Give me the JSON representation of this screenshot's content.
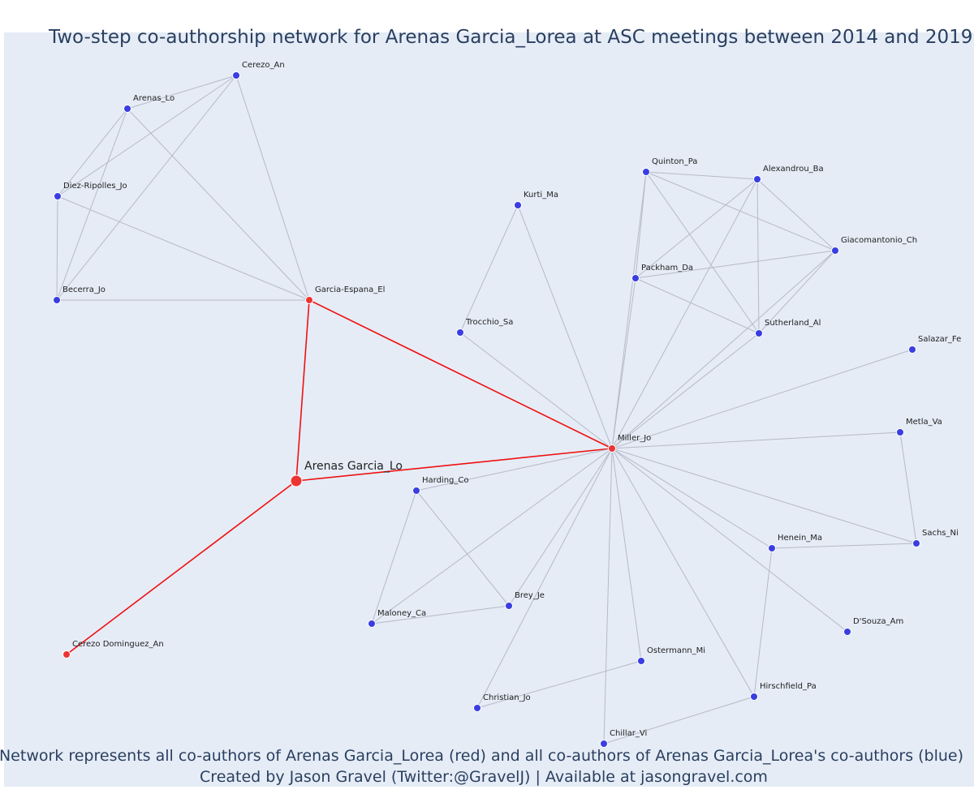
{
  "title": "Two-step co-authorship network for Arenas Garcia_Lorea at ASC meetings between 2014 and 2019",
  "caption_line1": "Network represents all co-authors of Arenas Garcia_Lorea (red) and all co-authors of Arenas Garcia_Lorea's co-authors (blue)",
  "caption_line2": "Created by Jason Gravel (Twitter:@GravelJ) | Available at jasongravel.com",
  "colors": {
    "background": "#e5ecf6",
    "edge": "#b7b9c8",
    "focal_edge": "#ee1111",
    "red_node": "#ee3333",
    "blue_node": "#3a3de0"
  },
  "nodes": [
    {
      "id": "Arenas Garcia_Lo",
      "group": "focal"
    },
    {
      "id": "Garcia-Espana_El",
      "group": "red"
    },
    {
      "id": "Miller_Jo",
      "group": "red"
    },
    {
      "id": "Cerezo Dominguez_An",
      "group": "red"
    },
    {
      "id": "Cerezo_An",
      "group": "blue"
    },
    {
      "id": "Arenas_Lo",
      "group": "blue"
    },
    {
      "id": "Diez-Ripolles_Jo",
      "group": "blue"
    },
    {
      "id": "Becerra_Jo",
      "group": "blue"
    },
    {
      "id": "Kurti_Ma",
      "group": "blue"
    },
    {
      "id": "Trocchio_Sa",
      "group": "blue"
    },
    {
      "id": "Quinton_Pa",
      "group": "blue"
    },
    {
      "id": "Alexandrou_Ba",
      "group": "blue"
    },
    {
      "id": "Giacomantonio_Ch",
      "group": "blue"
    },
    {
      "id": "Packham_Da",
      "group": "blue"
    },
    {
      "id": "Sutherland_Al",
      "group": "blue"
    },
    {
      "id": "Salazar_Fe",
      "group": "blue"
    },
    {
      "id": "Metla_Va",
      "group": "blue"
    },
    {
      "id": "Sachs_Ni",
      "group": "blue"
    },
    {
      "id": "Henein_Ma",
      "group": "blue"
    },
    {
      "id": "D'Souza_Am",
      "group": "blue"
    },
    {
      "id": "Hirschfield_Pa",
      "group": "blue"
    },
    {
      "id": "Ostermann_Mi",
      "group": "blue"
    },
    {
      "id": "Chillar_Vi",
      "group": "blue"
    },
    {
      "id": "Christian_Jo",
      "group": "blue"
    },
    {
      "id": "Harding_Co",
      "group": "blue"
    },
    {
      "id": "Brey_Je",
      "group": "blue"
    },
    {
      "id": "Maloney_Ca",
      "group": "blue"
    }
  ],
  "edges": [
    [
      "Arenas Garcia_Lo",
      "Garcia-Espana_El",
      "focal"
    ],
    [
      "Arenas Garcia_Lo",
      "Miller_Jo",
      "focal"
    ],
    [
      "Arenas Garcia_Lo",
      "Cerezo Dominguez_An",
      "focal"
    ],
    [
      "Garcia-Espana_El",
      "Miller_Jo",
      "focal"
    ],
    [
      "Cerezo_An",
      "Arenas_Lo",
      "other"
    ],
    [
      "Cerezo_An",
      "Diez-Ripolles_Jo",
      "other"
    ],
    [
      "Cerezo_An",
      "Becerra_Jo",
      "other"
    ],
    [
      "Cerezo_An",
      "Garcia-Espana_El",
      "other"
    ],
    [
      "Arenas_Lo",
      "Diez-Ripolles_Jo",
      "other"
    ],
    [
      "Arenas_Lo",
      "Becerra_Jo",
      "other"
    ],
    [
      "Arenas_Lo",
      "Garcia-Espana_El",
      "other"
    ],
    [
      "Diez-Ripolles_Jo",
      "Becerra_Jo",
      "other"
    ],
    [
      "Diez-Ripolles_Jo",
      "Garcia-Espana_El",
      "other"
    ],
    [
      "Becerra_Jo",
      "Garcia-Espana_El",
      "other"
    ],
    [
      "Kurti_Ma",
      "Trocchio_Sa",
      "other"
    ],
    [
      "Kurti_Ma",
      "Miller_Jo",
      "other"
    ],
    [
      "Trocchio_Sa",
      "Miller_Jo",
      "other"
    ],
    [
      "Quinton_Pa",
      "Alexandrou_Ba",
      "other"
    ],
    [
      "Quinton_Pa",
      "Giacomantonio_Ch",
      "other"
    ],
    [
      "Quinton_Pa",
      "Packham_Da",
      "other"
    ],
    [
      "Quinton_Pa",
      "Sutherland_Al",
      "other"
    ],
    [
      "Quinton_Pa",
      "Miller_Jo",
      "other"
    ],
    [
      "Alexandrou_Ba",
      "Giacomantonio_Ch",
      "other"
    ],
    [
      "Alexandrou_Ba",
      "Packham_Da",
      "other"
    ],
    [
      "Alexandrou_Ba",
      "Sutherland_Al",
      "other"
    ],
    [
      "Alexandrou_Ba",
      "Miller_Jo",
      "other"
    ],
    [
      "Giacomantonio_Ch",
      "Packham_Da",
      "other"
    ],
    [
      "Giacomantonio_Ch",
      "Sutherland_Al",
      "other"
    ],
    [
      "Giacomantonio_Ch",
      "Miller_Jo",
      "other"
    ],
    [
      "Packham_Da",
      "Sutherland_Al",
      "other"
    ],
    [
      "Packham_Da",
      "Miller_Jo",
      "other"
    ],
    [
      "Sutherland_Al",
      "Miller_Jo",
      "other"
    ],
    [
      "Salazar_Fe",
      "Miller_Jo",
      "other"
    ],
    [
      "Metla_Va",
      "Miller_Jo",
      "other"
    ],
    [
      "Metla_Va",
      "Sachs_Ni",
      "other"
    ],
    [
      "Sachs_Ni",
      "Miller_Jo",
      "other"
    ],
    [
      "Sachs_Ni",
      "Henein_Ma",
      "other"
    ],
    [
      "Henein_Ma",
      "Miller_Jo",
      "other"
    ],
    [
      "Henein_Ma",
      "Hirschfield_Pa",
      "other"
    ],
    [
      "D'Souza_Am",
      "Miller_Jo",
      "other"
    ],
    [
      "Hirschfield_Pa",
      "Miller_Jo",
      "other"
    ],
    [
      "Hirschfield_Pa",
      "Chillar_Vi",
      "other"
    ],
    [
      "Ostermann_Mi",
      "Miller_Jo",
      "other"
    ],
    [
      "Ostermann_Mi",
      "Christian_Jo",
      "other"
    ],
    [
      "Chillar_Vi",
      "Miller_Jo",
      "other"
    ],
    [
      "Christian_Jo",
      "Miller_Jo",
      "other"
    ],
    [
      "Harding_Co",
      "Miller_Jo",
      "other"
    ],
    [
      "Harding_Co",
      "Brey_Je",
      "other"
    ],
    [
      "Harding_Co",
      "Maloney_Ca",
      "other"
    ],
    [
      "Brey_Je",
      "Maloney_Ca",
      "other"
    ],
    [
      "Brey_Je",
      "Miller_Jo",
      "other"
    ],
    [
      "Maloney_Ca",
      "Miller_Jo",
      "other"
    ]
  ]
}
